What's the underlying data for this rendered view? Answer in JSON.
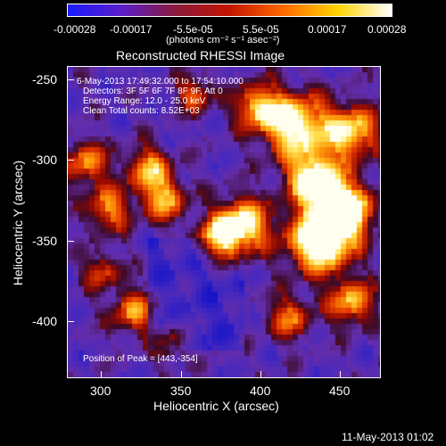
{
  "colorbar": {
    "tick_labels": [
      "-0.00028",
      "-0.00017",
      "-5.5e-05",
      "5.5e-05",
      "0.00017",
      "0.00028"
    ],
    "units_label": "(photons cm⁻² s⁻¹ asec⁻²)",
    "colors": [
      "#1a1aff",
      "#5b1ec8",
      "#8a1a3c",
      "#c41400",
      "#ff6a00",
      "#ffd400",
      "#ffffff"
    ]
  },
  "title": "Reconstructed RHESSI Image",
  "overlay": {
    "time_range": "6-May-2013 17:49:32.000 to 17:54:10.000",
    "detectors": "Detectors: 3F 5F 6F 7F 8F 9F, Att 0",
    "energy": "Energy Range: 12.0 - 25.0 keV",
    "clean": "Clean    Total counts: 8.52E+03",
    "peak": "Position of Peak = [443,-354]"
  },
  "axes": {
    "xlabel": "Heliocentric X (arcsec)",
    "ylabel": "Heliocentric Y (arcsec)",
    "xticks": [
      "300",
      "350",
      "400",
      "450"
    ],
    "yticks": [
      "-250",
      "-300",
      "-350",
      "-400"
    ],
    "xrange": [
      278,
      474
    ],
    "yrange": [
      -433,
      -240
    ]
  },
  "footer": {
    "timestamp": "11-May-2013 01:02"
  }
}
